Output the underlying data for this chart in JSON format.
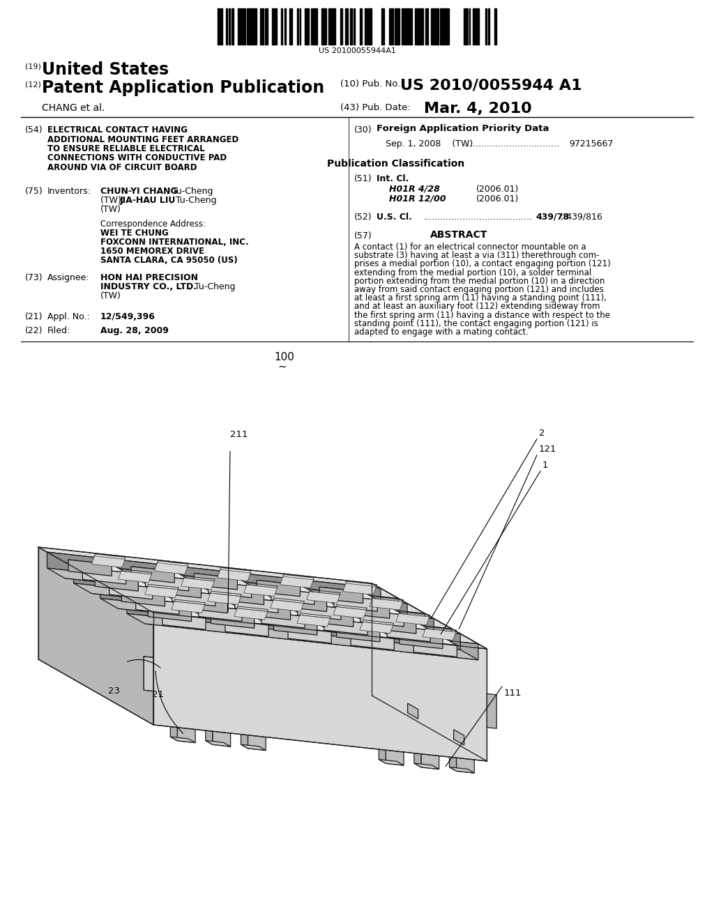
{
  "bg_color": "#ffffff",
  "barcode_text": "US 20100055944A1",
  "header_19_text": "United States",
  "header_12_text": "Patent Application Publication",
  "header_10_label": "(10) Pub. No.:",
  "header_10_value": "US 2010/0055944 A1",
  "header_43_label": "(43) Pub. Date:",
  "header_43_value": "Mar. 4, 2010",
  "chang_et_al": "CHANG et al.",
  "field_54_title_lines": [
    "ELECTRICAL CONTACT HAVING",
    "ADDITIONAL MOUNTING FEET ARRANGED",
    "TO ENSURE RELIABLE ELECTRICAL",
    "CONNECTIONS WITH CONDUCTIVE PAD",
    "AROUND VIA OF CIRCUIT BOARD"
  ],
  "field_30_title": "Foreign Application Priority Data",
  "field_30_entry_left": "Sep. 1, 2008    (TW)",
  "field_30_entry_dots": "  ..................................",
  "field_30_entry_right": "97215667",
  "pub_class_title": "Publication Classification",
  "field_51_class1": "H01R 4/28",
  "field_51_year1": "(2006.01)",
  "field_51_class2": "H01R 12/00",
  "field_51_year2": "(2006.01)",
  "field_52_dots": ".......................................",
  "field_52_value": "439/78",
  "field_52_value2": "; 439/816",
  "field_57_title": "ABSTRACT",
  "abstract_lines": [
    "A contact (1) for an electrical connector mountable on a",
    "substrate (3) having at least a via (311) therethrough com-",
    "prises a medial portion (10), a contact engaging portion (121)",
    "extending from the medial portion (10), a solder terminal",
    "portion extending from the medial portion (10) in a direction",
    "away from said contact engaging portion (121) and includes",
    "at least a first spring arm (11) having a standing point (111),",
    "and at least an auxiliary foot (112) extending sideway from",
    "the first spring arm (11) having a distance with respect to the",
    "standing point (111), the contact engaging portion (121) is",
    "adapted to engage with a mating contact."
  ]
}
